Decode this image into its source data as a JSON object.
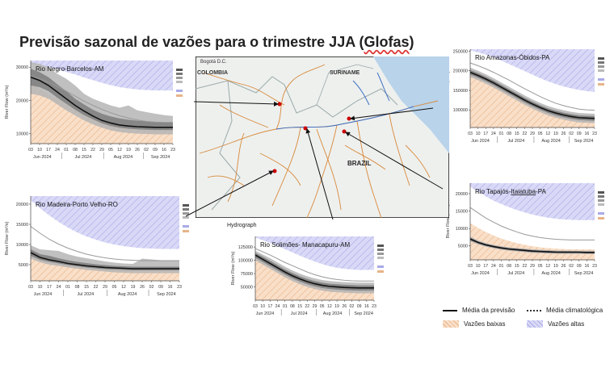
{
  "title": "Previsão sazonal de vazões para o trimestre JJA (Glofas)",
  "title_underlined": "Glofas",
  "hydrograph_label": "Hydrograph",
  "map": {
    "labels": {
      "colombia": "COLOMBIA",
      "suriname": "SURINAME",
      "brazil": "BRAZIL",
      "bogota": "Bogotá D.C."
    }
  },
  "legend": {
    "forecast_mean": "Média da previsão",
    "climatology_mean": "Média climatológica",
    "low_flows": "Vazões baixas",
    "high_flows": "Vazões altas"
  },
  "colors": {
    "high_band": "#d9d9f7",
    "high_hatch": "#a9a9e8",
    "low_band": "#f9dfc8",
    "low_hatch": "#e8b48a",
    "forecast": "#111111",
    "climatology": "#888888"
  },
  "chart_data": [
    {
      "id": "negro",
      "type": "area",
      "title": "Rio Negro-Barcelos-AM",
      "ylabel": "River Flow (m³/s)",
      "ylim": [
        7000,
        32000
      ],
      "yticks": [
        10000,
        20000,
        30000
      ],
      "xticks": [
        "03",
        "10",
        "17",
        "24",
        "01",
        "08",
        "15",
        "22",
        "29",
        "05",
        "12",
        "19",
        "26",
        "02",
        "09",
        "16",
        "23"
      ],
      "months": [
        "Jun 2024",
        "Jul 2024",
        "Aug 2024",
        "Sep 2024"
      ],
      "high_threshold": [
        31000,
        30500,
        30000,
        29400,
        28600,
        27800,
        26900,
        26100,
        25300,
        24600,
        24000,
        23600,
        23300,
        23100,
        23000,
        23000,
        23000
      ],
      "low_threshold": [
        25000,
        23500,
        22000,
        20500,
        19000,
        17500,
        16000,
        14800,
        13800,
        13000,
        12300,
        11800,
        11500,
        11300,
        11200,
        11200,
        11200
      ],
      "climatology": [
        27500,
        26500,
        25500,
        24200,
        22800,
        21300,
        19800,
        18500,
        17300,
        16300,
        15400,
        14700,
        14100,
        13700,
        13500,
        13400,
        13400
      ],
      "forecast": [
        27000,
        26000,
        24500,
        22500,
        20500,
        18500,
        16800,
        15300,
        14000,
        13200,
        12600,
        12300,
        12100,
        12000,
        11900,
        11900,
        11900
      ],
      "ens_inner": [
        [
          24500,
          29500
        ],
        [
          24000,
          28500
        ],
        [
          22800,
          27000
        ],
        [
          20800,
          24800
        ],
        [
          19000,
          22800
        ],
        [
          17200,
          20500
        ],
        [
          15600,
          18800
        ],
        [
          14300,
          17200
        ],
        [
          13100,
          16000
        ],
        [
          12300,
          15200
        ],
        [
          11800,
          14600
        ],
        [
          11500,
          14200
        ],
        [
          11300,
          13900
        ],
        [
          11200,
          13700
        ],
        [
          11100,
          13500
        ],
        [
          11100,
          13400
        ],
        [
          11100,
          13300
        ]
      ],
      "ens_outer": [
        [
          22000,
          31500
        ],
        [
          21500,
          31000
        ],
        [
          20500,
          30000
        ],
        [
          18800,
          28000
        ],
        [
          17000,
          26500
        ],
        [
          15500,
          24500
        ],
        [
          14000,
          22000
        ],
        [
          12800,
          20500
        ],
        [
          11800,
          19500
        ],
        [
          11000,
          18500
        ],
        [
          10500,
          17800
        ],
        [
          10200,
          18500
        ],
        [
          10000,
          17000
        ],
        [
          9900,
          16500
        ],
        [
          9800,
          16000
        ],
        [
          9800,
          15600
        ],
        [
          9800,
          15300
        ]
      ]
    },
    {
      "id": "madeira",
      "type": "area",
      "title": "Rio Madeira-Porto Velho-RO",
      "ylabel": "River Flow (m³/s)",
      "ylim": [
        1000,
        22000
      ],
      "yticks": [
        5000,
        10000,
        15000,
        20000
      ],
      "xticks": [
        "03",
        "10",
        "17",
        "24",
        "01",
        "08",
        "15",
        "22",
        "29",
        "05",
        "12",
        "19",
        "26",
        "02",
        "09",
        "16",
        "23"
      ],
      "months": [
        "Jun 2024",
        "Jul 2024",
        "Aug 2024",
        "Sep 2024"
      ],
      "high_threshold": [
        21000,
        19000,
        17200,
        15600,
        14200,
        13000,
        12000,
        11200,
        10500,
        10000,
        9600,
        9300,
        9100,
        9000,
        8900,
        8900,
        8900
      ],
      "low_threshold": [
        9000,
        7800,
        6800,
        6000,
        5400,
        4900,
        4500,
        4200,
        4000,
        3800,
        3700,
        3600,
        3500,
        3500,
        3500,
        3500,
        3500
      ],
      "climatology": [
        14500,
        12800,
        11300,
        10100,
        9100,
        8300,
        7600,
        7100,
        6700,
        6400,
        6200,
        6100,
        6000,
        6000,
        6000,
        6000,
        6000
      ],
      "forecast": [
        8000,
        6800,
        6200,
        5800,
        5300,
        5000,
        4700,
        4500,
        4300,
        4200,
        4100,
        4000,
        4000,
        4000,
        4000,
        4000,
        4000
      ],
      "ens_inner": [
        [
          7200,
          8800
        ],
        [
          6200,
          7600
        ],
        [
          5700,
          7200
        ],
        [
          5300,
          6600
        ],
        [
          4900,
          6100
        ],
        [
          4600,
          5700
        ],
        [
          4300,
          5400
        ],
        [
          4100,
          5100
        ],
        [
          3900,
          4900
        ],
        [
          3800,
          4700
        ],
        [
          3700,
          4600
        ],
        [
          3600,
          4500
        ],
        [
          3600,
          4500
        ],
        [
          3600,
          4500
        ],
        [
          3600,
          4500
        ],
        [
          3600,
          4500
        ],
        [
          3600,
          4500
        ]
      ],
      "ens_outer": [
        [
          6500,
          9800
        ],
        [
          5600,
          8800
        ],
        [
          5000,
          8600
        ],
        [
          4700,
          8400
        ],
        [
          4300,
          7600
        ],
        [
          4000,
          7000
        ],
        [
          3700,
          6600
        ],
        [
          3500,
          6200
        ],
        [
          3300,
          5800
        ],
        [
          3100,
          5500
        ],
        [
          3000,
          5300
        ],
        [
          2900,
          5200
        ],
        [
          2900,
          6500
        ],
        [
          2900,
          6300
        ],
        [
          2900,
          6100
        ],
        [
          2900,
          6000
        ],
        [
          2900,
          6000
        ]
      ]
    },
    {
      "id": "solimoes",
      "type": "area",
      "title": "Rio Solimões- Manacapuru-AM",
      "ylabel": "River Flow (m³/s)",
      "ylim": [
        25000,
        145000
      ],
      "yticks": [
        50000,
        75000,
        100000,
        125000
      ],
      "xticks": [
        "03",
        "10",
        "17",
        "24",
        "01",
        "08",
        "15",
        "22",
        "29",
        "05",
        "12",
        "19",
        "26",
        "02",
        "09",
        "16",
        "23"
      ],
      "months": [
        "Jun 2024",
        "Jul 2024",
        "Aug 2024",
        "Sep 2024"
      ],
      "high_threshold": [
        143000,
        138000,
        133000,
        127000,
        121000,
        115000,
        109000,
        103000,
        98000,
        93000,
        89000,
        86000,
        84000,
        83000,
        82000,
        82000,
        82000
      ],
      "low_threshold": [
        108000,
        100000,
        92000,
        84000,
        77000,
        70000,
        64000,
        59000,
        55000,
        52000,
        50000,
        48500,
        47500,
        47000,
        47000,
        47000,
        47000
      ],
      "climatology": [
        122000,
        116000,
        110000,
        103000,
        96000,
        90000,
        84000,
        78000,
        73000,
        69000,
        66000,
        64000,
        62500,
        61500,
        61000,
        61000,
        61000
      ],
      "forecast": [
        110000,
        102000,
        94000,
        86000,
        78000,
        71000,
        65000,
        60000,
        56000,
        53000,
        51000,
        50000,
        49000,
        48500,
        48000,
        48000,
        48000
      ],
      "ens_inner": [
        [
          105000,
          114000
        ],
        [
          97000,
          107000
        ],
        [
          89000,
          99000
        ],
        [
          81000,
          91000
        ],
        [
          73000,
          83000
        ],
        [
          66000,
          76000
        ],
        [
          60000,
          70000
        ],
        [
          55000,
          65000
        ],
        [
          51000,
          61000
        ],
        [
          48000,
          58000
        ],
        [
          46000,
          56000
        ],
        [
          45000,
          55000
        ],
        [
          44000,
          54000
        ],
        [
          43500,
          53500
        ],
        [
          43000,
          53000
        ],
        [
          43000,
          53000
        ],
        [
          43000,
          53000
        ]
      ],
      "ens_outer": [
        [
          100000,
          118000
        ],
        [
          92000,
          111000
        ],
        [
          84000,
          104000
        ],
        [
          76000,
          96000
        ],
        [
          68000,
          88000
        ],
        [
          61000,
          81000
        ],
        [
          55000,
          75000
        ],
        [
          50000,
          70000
        ],
        [
          46000,
          66000
        ],
        [
          43000,
          63000
        ],
        [
          41000,
          61000
        ],
        [
          40000,
          60000
        ],
        [
          39000,
          59000
        ],
        [
          38500,
          58500
        ],
        [
          38000,
          58000
        ],
        [
          38000,
          58000
        ],
        [
          38000,
          58000
        ]
      ]
    },
    {
      "id": "amazonas",
      "type": "area",
      "title": "Rio Amazonas-Óbidos-PA",
      "ylabel": "River Flow (m³/s)",
      "ylim": [
        55000,
        255000
      ],
      "yticks": [
        100000,
        150000,
        200000,
        250000
      ],
      "xticks": [
        "03",
        "10",
        "17",
        "24",
        "01",
        "08",
        "15",
        "22",
        "29",
        "05",
        "12",
        "19",
        "26",
        "02",
        "09",
        "16",
        "23"
      ],
      "months": [
        "Jun 2024",
        "Jul 2024",
        "Aug 2024",
        "Sep 2024"
      ],
      "high_threshold": [
        252000,
        247000,
        241000,
        234000,
        226000,
        217000,
        208000,
        199000,
        190000,
        181000,
        173000,
        166000,
        160000,
        155000,
        151000,
        148000,
        146000
      ],
      "low_threshold": [
        205000,
        196000,
        186000,
        175000,
        164000,
        152000,
        141000,
        130000,
        120000,
        111000,
        103000,
        97000,
        92000,
        88000,
        86000,
        85000,
        85000
      ],
      "climatology": [
        220000,
        213000,
        205000,
        196000,
        186000,
        176000,
        165000,
        154000,
        144000,
        134000,
        125000,
        117000,
        111000,
        106000,
        102000,
        100000,
        99000
      ],
      "forecast": [
        196000,
        188000,
        179000,
        169000,
        158000,
        147000,
        136000,
        125000,
        115000,
        106000,
        98000,
        92000,
        87000,
        83000,
        80000,
        79000,
        78000
      ],
      "ens_inner": [
        [
          190000,
          202000
        ],
        [
          182000,
          194000
        ],
        [
          173000,
          185000
        ],
        [
          163000,
          175000
        ],
        [
          152000,
          164000
        ],
        [
          141000,
          153000
        ],
        [
          130000,
          142000
        ],
        [
          119000,
          131000
        ],
        [
          109000,
          121000
        ],
        [
          100000,
          112000
        ],
        [
          92000,
          104000
        ],
        [
          86000,
          98000
        ],
        [
          81000,
          93000
        ],
        [
          77000,
          89000
        ],
        [
          74000,
          86000
        ],
        [
          73000,
          85000
        ],
        [
          72000,
          84000
        ]
      ],
      "ens_outer": [
        [
          184000,
          208000
        ],
        [
          176000,
          200000
        ],
        [
          167000,
          191000
        ],
        [
          157000,
          181000
        ],
        [
          146000,
          170000
        ],
        [
          135000,
          159000
        ],
        [
          124000,
          148000
        ],
        [
          113000,
          137000
        ],
        [
          103000,
          127000
        ],
        [
          94000,
          118000
        ],
        [
          86000,
          110000
        ],
        [
          80000,
          104000
        ],
        [
          75000,
          99000
        ],
        [
          71000,
          95000
        ],
        [
          68000,
          92000
        ],
        [
          67000,
          91000
        ],
        [
          66000,
          90000
        ]
      ]
    },
    {
      "id": "tapajos",
      "type": "area",
      "title": "Rio Tapajós-Itaiatuba-PA",
      "title_underlined": "Itaiatuba",
      "ylabel": "River Flow (m³/s)",
      "ylim": [
        1000,
        23000
      ],
      "yticks": [
        5000,
        10000,
        15000,
        20000
      ],
      "xticks": [
        "03",
        "10",
        "17",
        "24",
        "01",
        "08",
        "15",
        "22",
        "29",
        "05",
        "12",
        "19",
        "26",
        "02",
        "09",
        "16",
        "23"
      ],
      "months": [
        "Jun 2024",
        "Jul 2024",
        "Aug 2024",
        "Sep 2024"
      ],
      "high_threshold": [
        22000,
        20500,
        19200,
        18000,
        17000,
        16100,
        15300,
        14600,
        14000,
        13500,
        13100,
        12800,
        12600,
        12500,
        12400,
        12400,
        12400
      ],
      "low_threshold": [
        11500,
        10200,
        9000,
        8000,
        7100,
        6400,
        5800,
        5300,
        4900,
        4600,
        4400,
        4200,
        4100,
        4000,
        4000,
        4000,
        4000
      ],
      "climatology": [
        16000,
        14500,
        13000,
        11800,
        10700,
        9800,
        9000,
        8300,
        7800,
        7400,
        7100,
        6900,
        6800,
        6700,
        6700,
        6700,
        6700
      ],
      "forecast": [
        7000,
        6000,
        5300,
        4800,
        4400,
        4100,
        3900,
        3700,
        3500,
        3400,
        3300,
        3200,
        3200,
        3200,
        3200,
        3100,
        3100
      ],
      "ens_inner": [
        [
          6600,
          7400
        ],
        [
          5700,
          6300
        ],
        [
          5000,
          5600
        ],
        [
          4500,
          5100
        ],
        [
          4100,
          4700
        ],
        [
          3800,
          4400
        ],
        [
          3600,
          4200
        ],
        [
          3400,
          4000
        ],
        [
          3200,
          3800
        ],
        [
          3100,
          3700
        ],
        [
          3000,
          3600
        ],
        [
          2950,
          3500
        ],
        [
          2900,
          3450
        ],
        [
          2900,
          3450
        ],
        [
          2900,
          3400
        ],
        [
          2850,
          3400
        ],
        [
          2850,
          3400
        ]
      ],
      "ens_outer": [
        [
          6300,
          7700
        ],
        [
          5400,
          6600
        ],
        [
          4800,
          5800
        ],
        [
          4300,
          5300
        ],
        [
          3900,
          4900
        ],
        [
          3600,
          4600
        ],
        [
          3400,
          4400
        ],
        [
          3200,
          4200
        ],
        [
          3000,
          4000
        ],
        [
          2900,
          3900
        ],
        [
          2800,
          3800
        ],
        [
          2750,
          3700
        ],
        [
          2700,
          3650
        ],
        [
          2700,
          3600
        ],
        [
          2700,
          3600
        ],
        [
          2650,
          3600
        ],
        [
          2650,
          3600
        ]
      ]
    }
  ]
}
